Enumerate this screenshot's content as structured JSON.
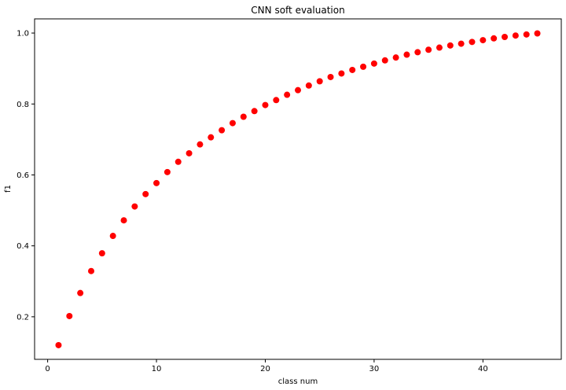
{
  "chart_data": {
    "type": "scatter",
    "title": "CNN soft evaluation",
    "xlabel": "class num",
    "ylabel": "f1",
    "xlim": [
      -1.2,
      47.2
    ],
    "ylim": [
      0.08,
      1.04
    ],
    "xticks": [
      0,
      10,
      20,
      30,
      40
    ],
    "yticks": [
      0.2,
      0.4,
      0.6,
      0.8,
      1.0
    ],
    "ytick_labels": [
      "0.2",
      "0.4",
      "0.6",
      "0.8",
      "1.0"
    ],
    "grid": false,
    "marker_color": "#ff0000",
    "series": [
      {
        "x": [
          1,
          2,
          3,
          4,
          5,
          6,
          7,
          8,
          9,
          10,
          11,
          12,
          13,
          14,
          15,
          16,
          17,
          18,
          19,
          20,
          21,
          22,
          23,
          24,
          25,
          26,
          27,
          28,
          29,
          30,
          31,
          32,
          33,
          34,
          35,
          36,
          37,
          38,
          39,
          40,
          41,
          42,
          43,
          44,
          45
        ],
        "y": [
          0.12,
          0.202,
          0.267,
          0.329,
          0.379,
          0.428,
          0.472,
          0.511,
          0.546,
          0.577,
          0.608,
          0.637,
          0.661,
          0.686,
          0.706,
          0.726,
          0.746,
          0.764,
          0.78,
          0.797,
          0.811,
          0.826,
          0.839,
          0.852,
          0.864,
          0.876,
          0.886,
          0.896,
          0.905,
          0.914,
          0.923,
          0.931,
          0.939,
          0.946,
          0.953,
          0.959,
          0.965,
          0.97,
          0.975,
          0.98,
          0.985,
          0.989,
          0.993,
          0.996,
          0.999
        ]
      }
    ]
  }
}
